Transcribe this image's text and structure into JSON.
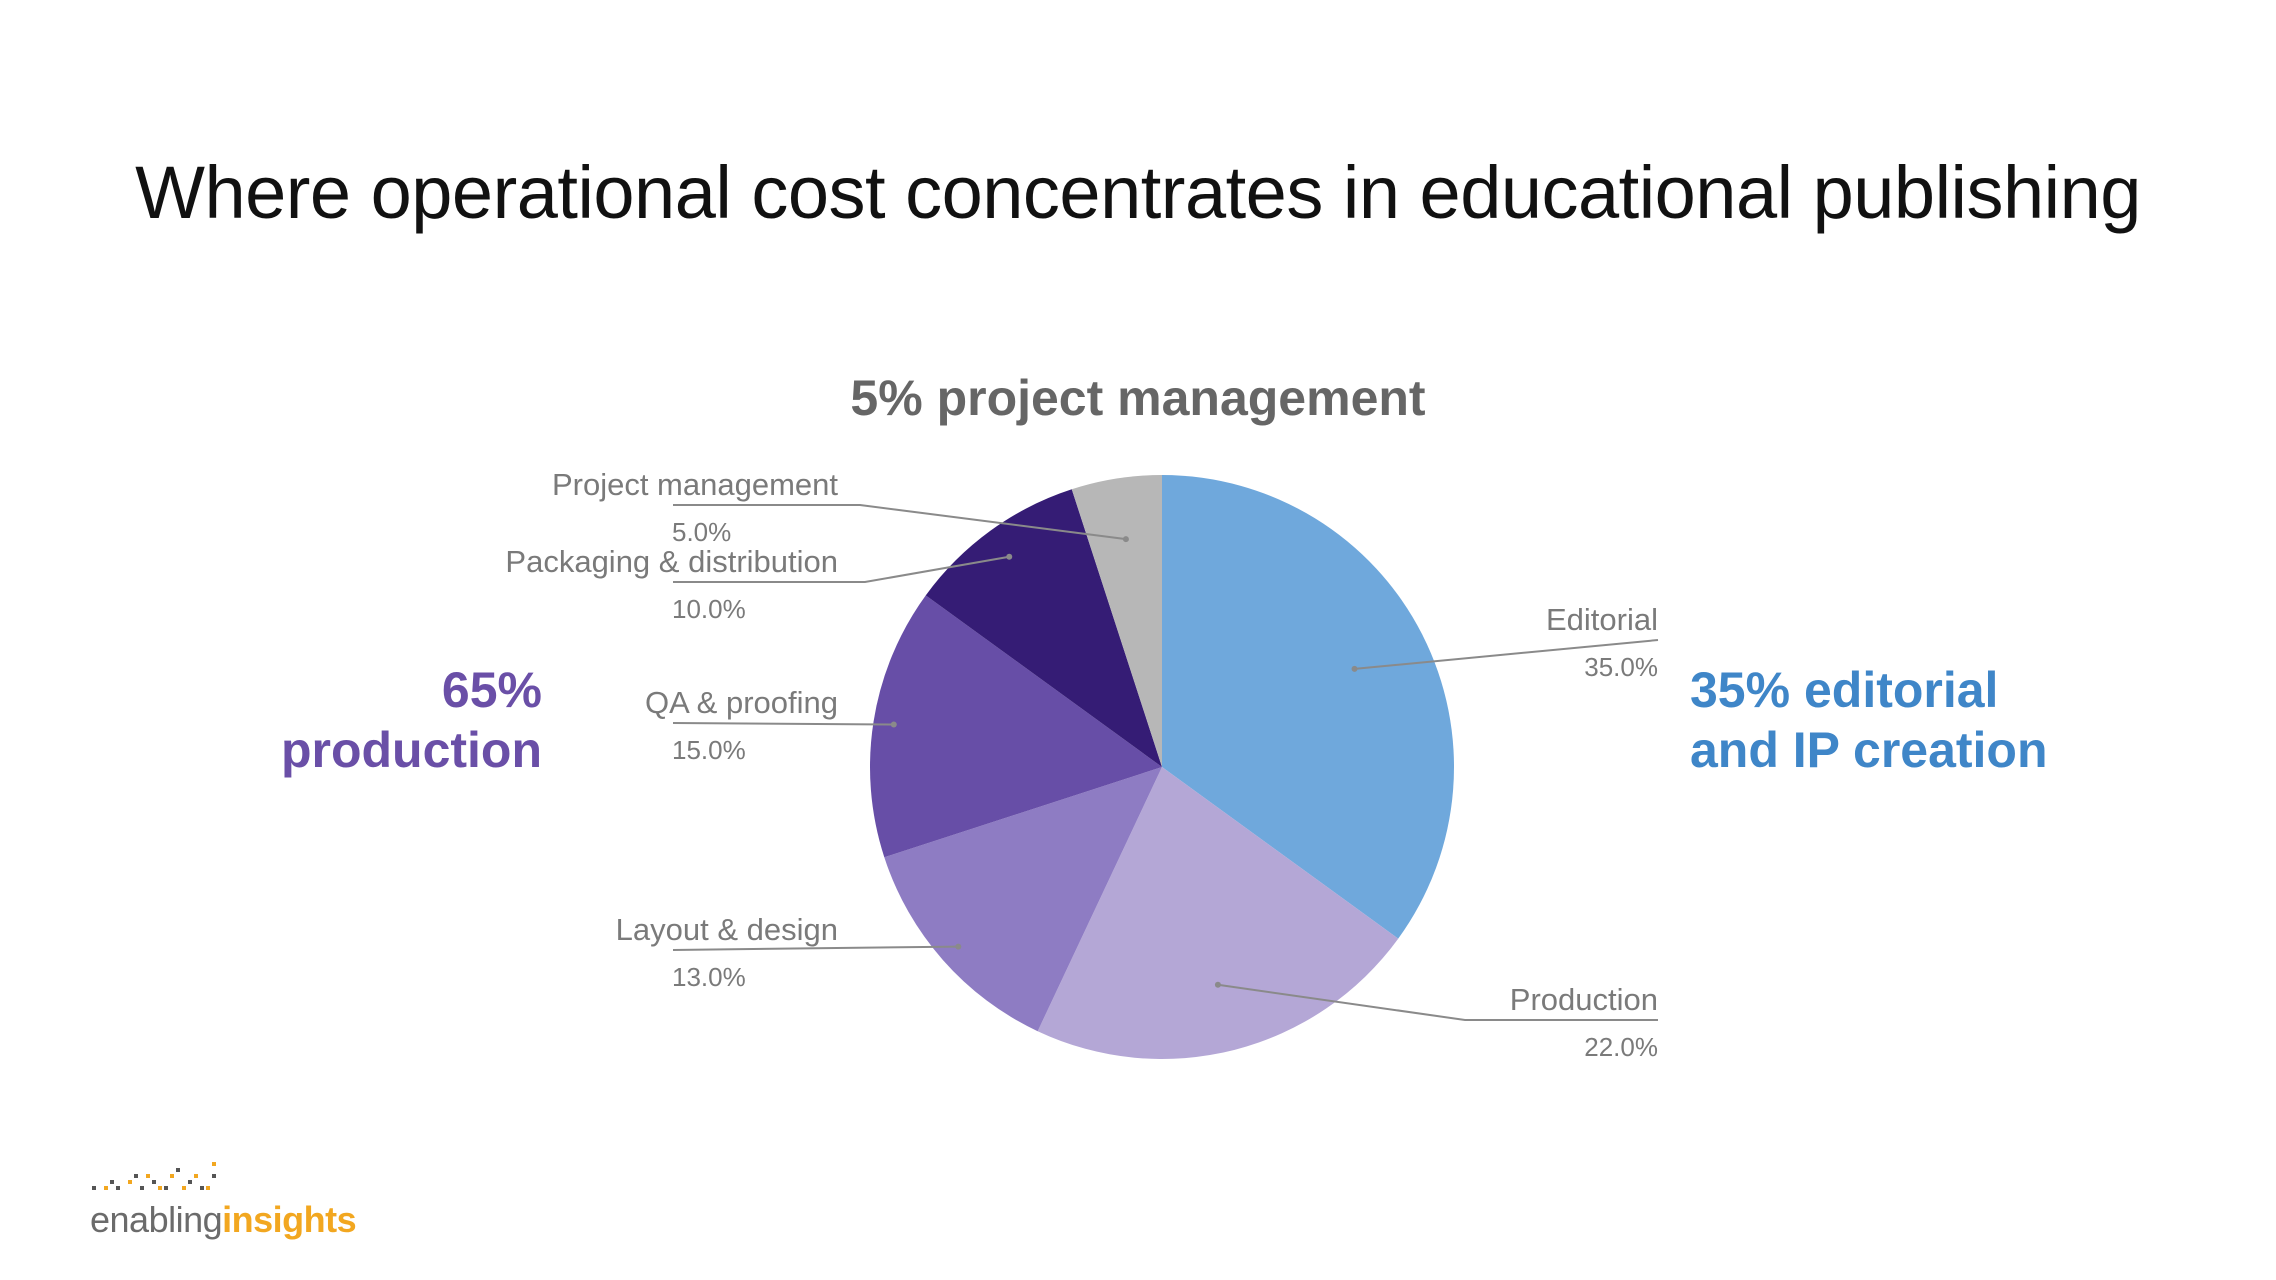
{
  "title": "Where operational cost concentrates in educational publishing",
  "callouts": {
    "project_management": "5% project management",
    "production_line1": "65%",
    "production_line2": "production",
    "editorial_line1": "35% editorial",
    "editorial_line2": "and IP creation"
  },
  "logo": {
    "part1": "enabling",
    "part2": "insights"
  },
  "colors": {
    "editorial_callout": "#3f86c8",
    "production_callout": "#6a4fa7",
    "pm_callout": "#666666",
    "logo_accent": "#f2a720"
  },
  "chart_data": {
    "type": "pie",
    "start_angle_deg": 0,
    "direction": "clockwise",
    "slices": [
      {
        "label": "Editorial",
        "value": 35.0,
        "value_label": "35.0%",
        "color": "#6fa8dc"
      },
      {
        "label": "Production",
        "value": 22.0,
        "value_label": "22.0%",
        "color": "#b4a7d6"
      },
      {
        "label": "Layout & design",
        "value": 13.0,
        "value_label": "13.0%",
        "color": "#8e7cc3"
      },
      {
        "label": "QA & proofing",
        "value": 15.0,
        "value_label": "15.0%",
        "color": "#674ea7"
      },
      {
        "label": "Packaging & distribution",
        "value": 10.0,
        "value_label": "10.0%",
        "color": "#351c75"
      },
      {
        "label": "Project management",
        "value": 5.0,
        "value_label": "5.0%",
        "color": "#b7b7b7"
      }
    ]
  }
}
